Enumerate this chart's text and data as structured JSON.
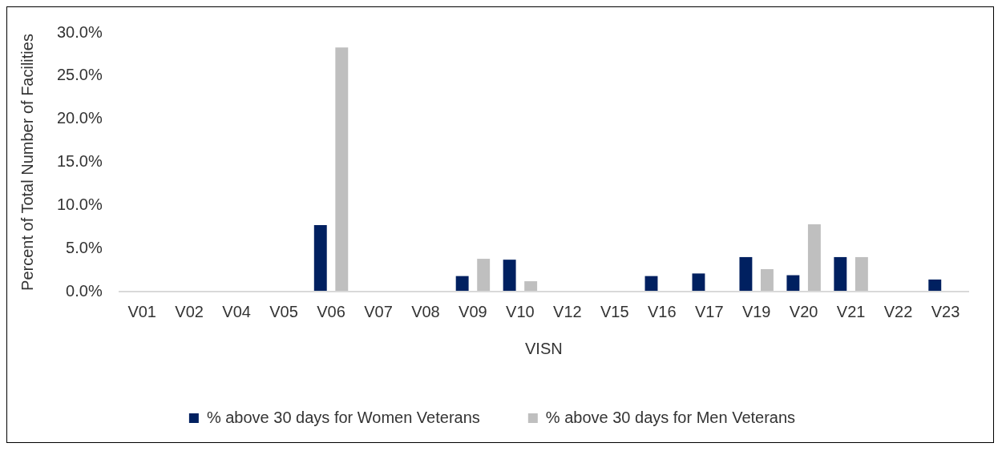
{
  "chart_data": {
    "type": "bar",
    "xlabel": "VISN",
    "ylabel": "Percent of Total Number of Facilities",
    "categories": [
      "V01",
      "V02",
      "V04",
      "V05",
      "V06",
      "V07",
      "V08",
      "V09",
      "V10",
      "V12",
      "V15",
      "V16",
      "V17",
      "V19",
      "V20",
      "V21",
      "V22",
      "V23"
    ],
    "series": [
      {
        "name": "% above 30 days for Women Veterans",
        "color": "#002060",
        "values": [
          0,
          0,
          0,
          0,
          7.7,
          0,
          0,
          1.8,
          3.7,
          0,
          0,
          1.8,
          2.1,
          4.0,
          1.9,
          4.0,
          0,
          1.4
        ]
      },
      {
        "name": "% above 30 days for Men Veterans",
        "color": "#bfbfbf",
        "values": [
          0,
          0,
          0,
          0,
          28.3,
          0,
          0,
          3.8,
          1.2,
          0,
          0,
          0,
          0,
          2.6,
          7.8,
          4.0,
          0,
          0
        ]
      }
    ],
    "ylim": [
      0,
      30
    ],
    "yticks": [
      {
        "value": 0,
        "label": "0.0%"
      },
      {
        "value": 5,
        "label": "5.0%"
      },
      {
        "value": 10,
        "label": "10.0%"
      },
      {
        "value": 15,
        "label": "15.0%"
      },
      {
        "value": 20,
        "label": "20.0%"
      },
      {
        "value": 25,
        "label": "25.0%"
      },
      {
        "value": 30,
        "label": "30.0%"
      }
    ],
    "grid": false,
    "legend": "bottom"
  }
}
